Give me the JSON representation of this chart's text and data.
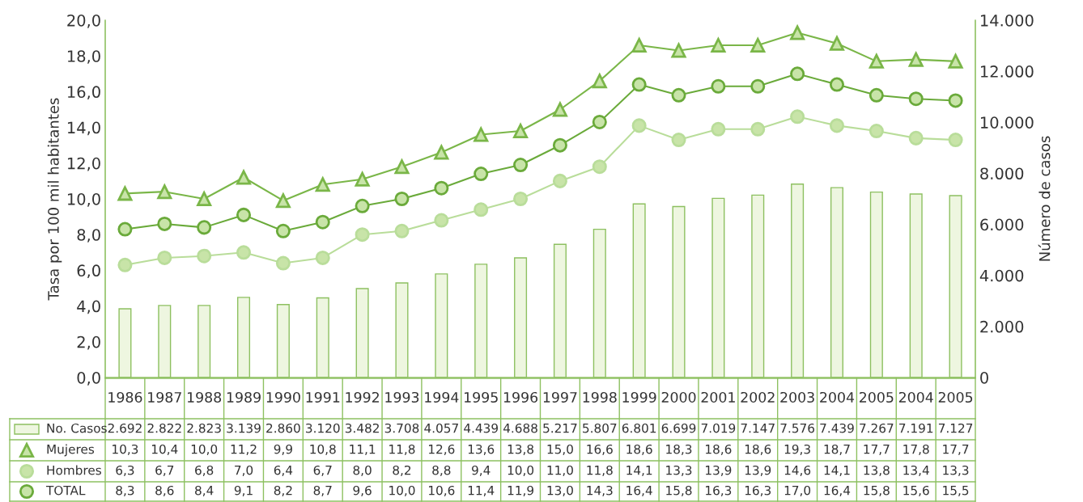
{
  "chart_data": {
    "type": "line",
    "ylabel": "Tasa por 100 mil habitantes",
    "y2label": "Número de casos",
    "categories": [
      "1986",
      "1987",
      "1988",
      "1989",
      "1990",
      "1991",
      "1992",
      "1993",
      "1994",
      "1995",
      "1996",
      "1997",
      "1998",
      "1999",
      "2000",
      "2001",
      "2002",
      "2003",
      "2004",
      "2005",
      "2004",
      "2005"
    ],
    "ylim": [
      0,
      20
    ],
    "yticks": [
      {
        "value": 0,
        "label": "0,0"
      },
      {
        "value": 2,
        "label": "2,0"
      },
      {
        "value": 4,
        "label": "4,0"
      },
      {
        "value": 6,
        "label": "6,0"
      },
      {
        "value": 8,
        "label": "8,0"
      },
      {
        "value": 10,
        "label": "10,0"
      },
      {
        "value": 12,
        "label": "12,0"
      },
      {
        "value": 14,
        "label": "14,0"
      },
      {
        "value": 16,
        "label": "16,0"
      },
      {
        "value": 18,
        "label": "18,0"
      },
      {
        "value": 20,
        "label": "20,0"
      }
    ],
    "y2lim": [
      0,
      14000
    ],
    "y2ticks": [
      0,
      {
        "value": 2000,
        "label": "2.000"
      },
      {
        "value": 4000,
        "label": "4.000"
      },
      {
        "value": 6000,
        "label": "6.000"
      },
      {
        "value": 8000,
        "label": "8.000"
      },
      {
        "value": 10000,
        "label": "10.000"
      },
      {
        "value": 12000,
        "label": "12.000"
      },
      {
        "value": 14000,
        "label": "14.000"
      }
    ],
    "grid": false,
    "legend": "bottom left",
    "line_style": "solid",
    "series": [
      {
        "name": "No. Casos",
        "type": "bar",
        "axis": "y2",
        "color": "#eef6e0",
        "values": [
          2692,
          2822,
          2823,
          3139,
          2860,
          3120,
          3482,
          3708,
          4057,
          4439,
          4688,
          5217,
          5807,
          6801,
          6699,
          7019,
          7147,
          7576,
          7439,
          7267,
          7191,
          7127
        ],
        "value_labels": [
          "2.692",
          "2.822",
          "2.823",
          "3.139",
          "2.860",
          "3.120",
          "3.482",
          "3.708",
          "4.057",
          "4.439",
          "4.688",
          "5.217",
          "5.807",
          "6.801",
          "6.699",
          "7.019",
          "7.147",
          "7.576",
          "7.439",
          "7.267",
          "7.191",
          "7.127"
        ]
      },
      {
        "name": "Mujeres",
        "marker": "triangle",
        "color": "#7ab648",
        "values": [
          10.3,
          10.4,
          10.0,
          11.2,
          9.9,
          10.8,
          11.1,
          11.8,
          12.6,
          13.6,
          13.8,
          15.0,
          16.6,
          18.6,
          18.3,
          18.6,
          18.6,
          19.3,
          18.7,
          17.7,
          17.8,
          17.7
        ],
        "value_labels": [
          "10,3",
          "10,4",
          "10,0",
          "11,2",
          "9,9",
          "10,8",
          "11,1",
          "11,8",
          "12,6",
          "13,6",
          "13,8",
          "15,0",
          "16,6",
          "18,6",
          "18,3",
          "18,6",
          "18,6",
          "19,3",
          "18,7",
          "17,7",
          "17,8",
          "17,7"
        ]
      },
      {
        "name": "Hombres",
        "marker": "circle",
        "color": "#b9dd9a",
        "values": [
          6.3,
          6.7,
          6.8,
          7.0,
          6.4,
          6.7,
          8.0,
          8.2,
          8.8,
          9.4,
          10.0,
          11.0,
          11.8,
          14.1,
          13.3,
          13.9,
          13.9,
          14.6,
          14.1,
          13.8,
          13.4,
          13.3
        ],
        "value_labels": [
          "6,3",
          "6,7",
          "6,8",
          "7,0",
          "6,4",
          "6,7",
          "8,0",
          "8,2",
          "8,8",
          "9,4",
          "10,0",
          "11,0",
          "11,8",
          "14,1",
          "13,3",
          "13,9",
          "13,9",
          "14,6",
          "14,1",
          "13,8",
          "13,4",
          "13,3"
        ]
      },
      {
        "name": "TOTAL",
        "marker": "circle",
        "color": "#6aaa3a",
        "values": [
          8.3,
          8.6,
          8.4,
          9.1,
          8.2,
          8.7,
          9.6,
          10.0,
          10.6,
          11.4,
          11.9,
          13.0,
          14.3,
          16.4,
          15.8,
          16.3,
          16.3,
          17.0,
          16.4,
          15.8,
          15.6,
          15.5
        ],
        "value_labels": [
          "8,3",
          "8,6",
          "8,4",
          "9,1",
          "8,2",
          "8,7",
          "9,6",
          "10,0",
          "10,6",
          "11,4",
          "11,9",
          "13,0",
          "14,3",
          "16,4",
          "15,8",
          "16,3",
          "16,3",
          "17,0",
          "16,4",
          "15,8",
          "15,6",
          "15,5"
        ]
      }
    ]
  }
}
